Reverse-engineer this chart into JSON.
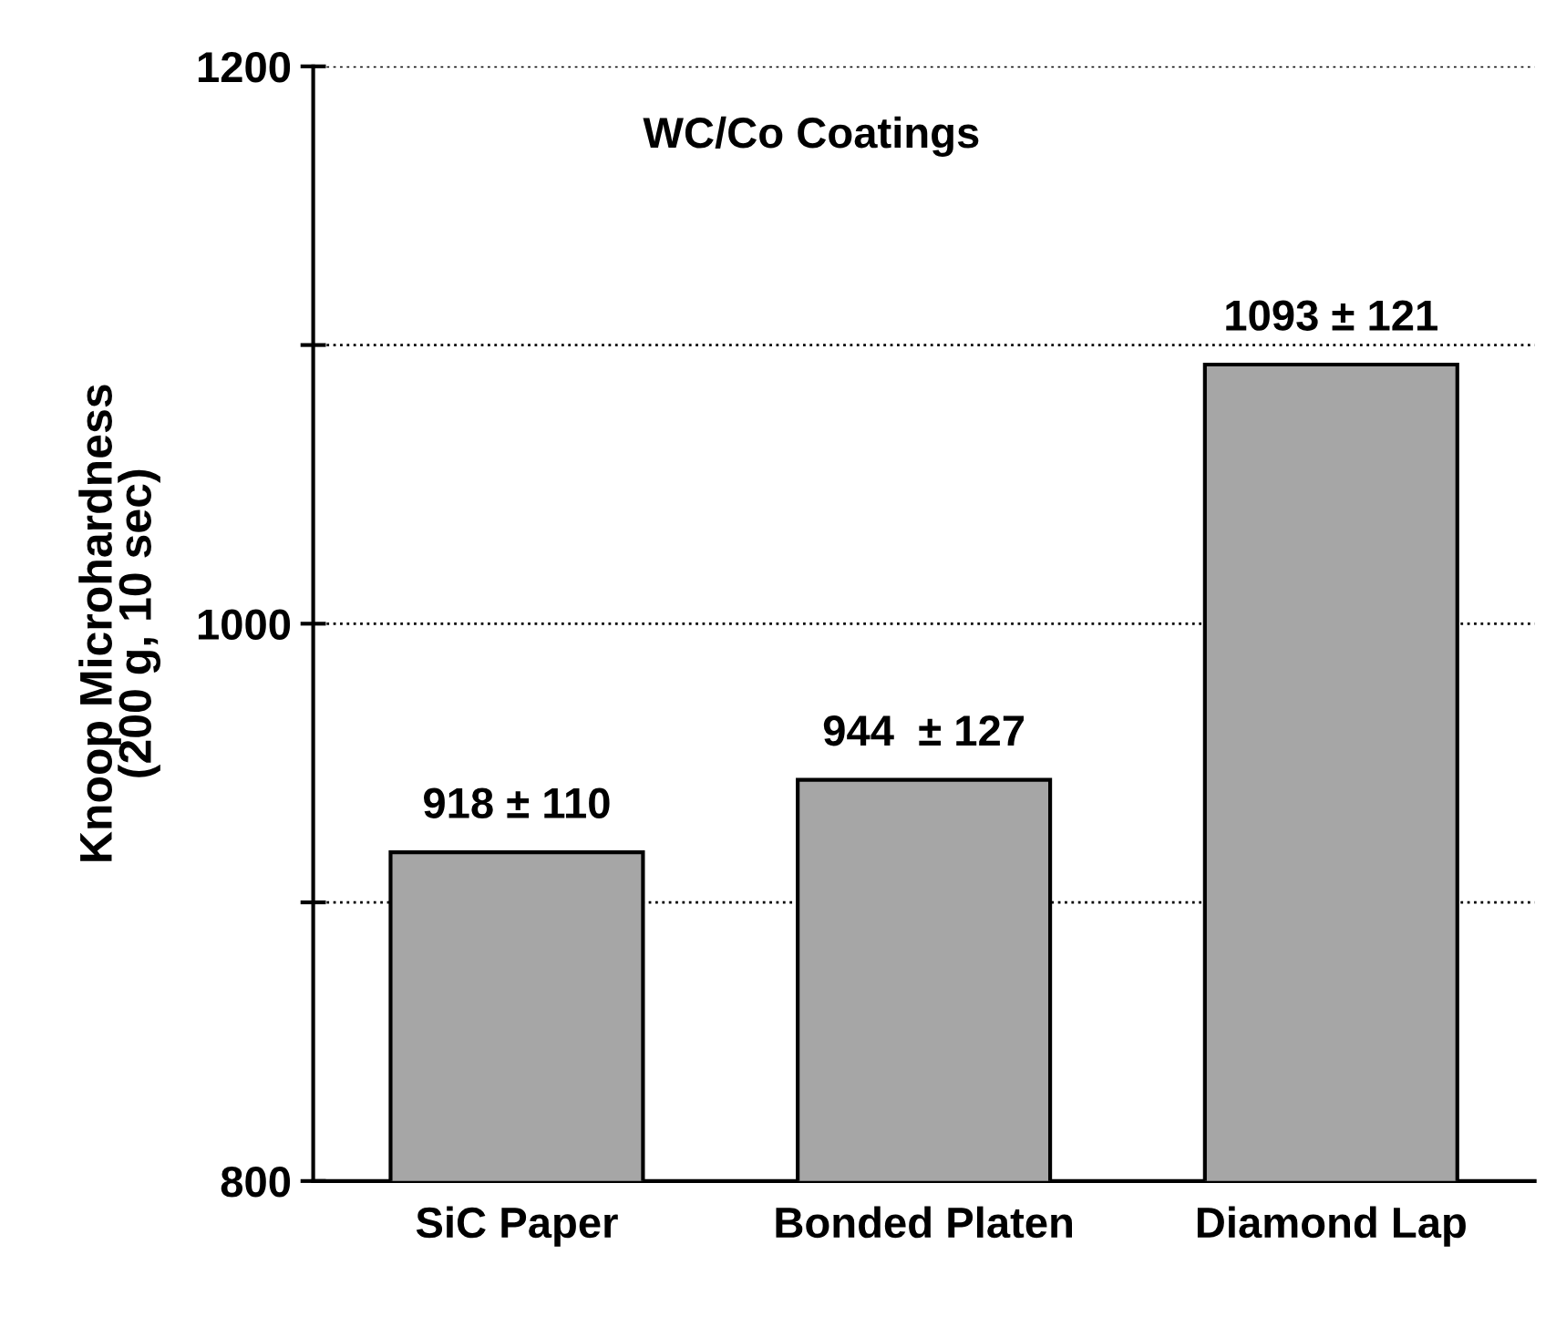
{
  "chart_data": {
    "type": "bar",
    "title": "WC/Co Coatings",
    "ylabel": "Knoop Microhardness\n(200 g, 10 sec)",
    "categories": [
      "SiC Paper",
      "Bonded Platen",
      "Diamond Lap"
    ],
    "values": [
      918,
      944,
      1093
    ],
    "color": "#a6a6a6",
    "value_labels": [
      "918 ± 110",
      "944  ± 127",
      "1093 ± 121"
    ],
    "ylim": [
      800,
      1200
    ],
    "yticks": [
      800,
      {
        "value": 900,
        "label": null
      },
      1000,
      {
        "value": 1100,
        "label": null
      },
      1200
    ],
    "grid": "y"
  }
}
